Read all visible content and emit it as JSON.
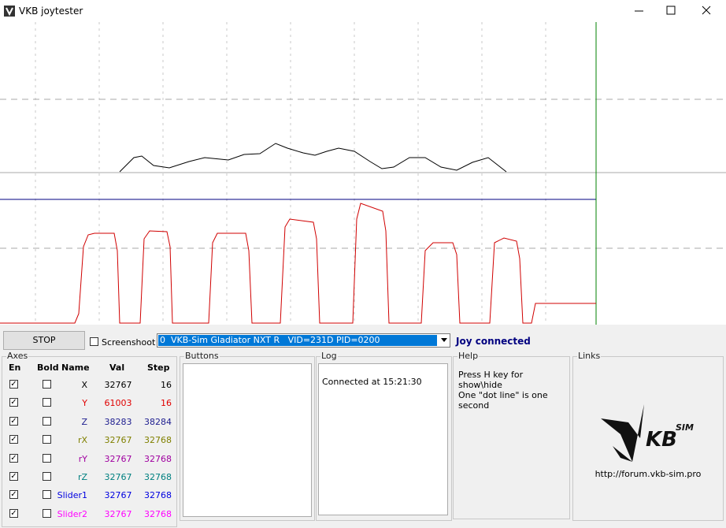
{
  "window": {
    "title": "VKB joytester"
  },
  "toolbar": {
    "stop": "STOP",
    "screenshot": "Screenshoot",
    "device": "0  VKB-Sim Gladiator NXT R   VID=231D PID=0200",
    "status": "Joy connected"
  },
  "axes": {
    "title": "Axes",
    "headers": [
      "En",
      "Bold",
      "Name",
      "Val",
      "Step"
    ],
    "rows": [
      {
        "name": "X",
        "val": 32767,
        "step": 16,
        "color": "#000000"
      },
      {
        "name": "Y",
        "val": 61003,
        "step": 16,
        "color": "#e00000"
      },
      {
        "name": "Z",
        "val": 38283,
        "step": 38284,
        "color": "#202090"
      },
      {
        "name": "rX",
        "val": 32767,
        "step": 32768,
        "color": "#808000"
      },
      {
        "name": "rY",
        "val": 32767,
        "step": 32768,
        "color": "#a000a0"
      },
      {
        "name": "rZ",
        "val": 32767,
        "step": 32768,
        "color": "#008080"
      },
      {
        "name": "Slider1",
        "val": 32767,
        "step": 32768,
        "color": "#0000e0"
      },
      {
        "name": "Slider2",
        "val": 32767,
        "step": 32768,
        "color": "#ff00ff"
      }
    ]
  },
  "buttons": {
    "title": "Buttons"
  },
  "log": {
    "title": "Log",
    "lines": [
      "Connected at 15:21:30"
    ]
  },
  "help": {
    "title": "Help",
    "lines": [
      "Press H key for show\\hide",
      "One \"dot line\" is one second"
    ]
  },
  "links": {
    "title": "Links",
    "logo": [
      "KB",
      "SIM"
    ],
    "url": "http://forum.vkb-sim.pro"
  }
}
